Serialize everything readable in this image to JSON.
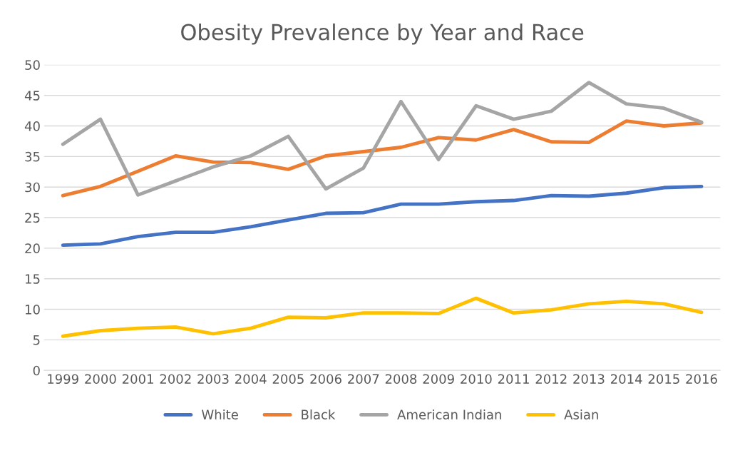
{
  "chart_data": {
    "type": "line",
    "title": "Obesity Prevalence by Year and Race",
    "categories": [
      "1999",
      "2000",
      "2001",
      "2002",
      "2003",
      "2004",
      "2005",
      "2006",
      "2007",
      "2008",
      "2009",
      "2010",
      "2011",
      "2012",
      "2013",
      "2014",
      "2015",
      "2016"
    ],
    "series": [
      {
        "name": "White",
        "color": "#4472c4",
        "values": [
          20.5,
          20.7,
          21.9,
          22.6,
          22.6,
          23.5,
          24.6,
          25.7,
          25.8,
          27.2,
          27.2,
          27.6,
          27.8,
          28.6,
          28.5,
          29.0,
          29.9,
          30.1
        ]
      },
      {
        "name": "Black",
        "color": "#ed7d31",
        "values": [
          28.6,
          30.1,
          32.6,
          35.1,
          34.1,
          34.0,
          32.9,
          35.1,
          35.8,
          36.5,
          38.1,
          37.7,
          39.4,
          37.4,
          37.3,
          40.8,
          40.0,
          40.5
        ]
      },
      {
        "name": "American Indian",
        "color": "#a5a5a5",
        "values": [
          37.0,
          41.1,
          28.7,
          31.0,
          33.3,
          35.1,
          38.3,
          29.7,
          33.1,
          44.0,
          34.5,
          43.3,
          41.1,
          42.4,
          47.1,
          43.6,
          42.9,
          40.6
        ]
      },
      {
        "name": "Asian",
        "color": "#ffc000",
        "values": [
          5.6,
          6.5,
          6.9,
          7.1,
          6.0,
          6.9,
          8.7,
          8.6,
          9.4,
          9.4,
          9.3,
          11.8,
          9.4,
          9.9,
          10.9,
          11.3,
          10.9,
          9.5
        ]
      }
    ],
    "ylim": [
      0,
      50
    ],
    "yticks": [
      0,
      5,
      10,
      15,
      20,
      25,
      30,
      35,
      40,
      45,
      50
    ],
    "grid": "y",
    "legend": "bottom",
    "marker": "none",
    "line_style": "solid"
  }
}
